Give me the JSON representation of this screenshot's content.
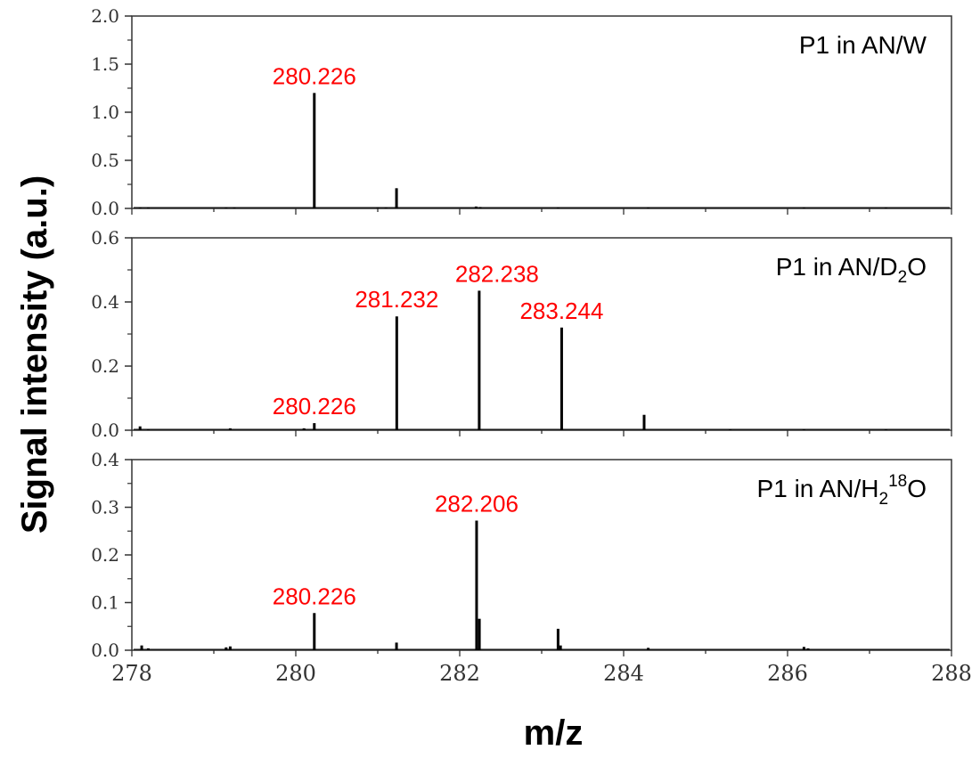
{
  "colors": {
    "annotation": "#ff0000",
    "spectrum": "#000000",
    "axis": "#333333"
  },
  "chart_data": [
    {
      "type": "bar",
      "title_main": "P1 in AN/W",
      "title_sub": "",
      "title_sup": "",
      "title_tail": "",
      "ylim": [
        0,
        2.0
      ],
      "yticks": [
        "0.0",
        "0.5",
        "1.0",
        "1.5",
        "2.0"
      ],
      "ytick_values": [
        0,
        0.5,
        1.0,
        1.5,
        2.0
      ],
      "xlim": [
        278,
        288
      ],
      "peaks": [
        {
          "x": 278.1,
          "y": 0.01
        },
        {
          "x": 278.2,
          "y": 0.012
        },
        {
          "x": 279.15,
          "y": 0.01
        },
        {
          "x": 279.25,
          "y": 0.012
        },
        {
          "x": 280.226,
          "y": 1.2
        },
        {
          "x": 281.0,
          "y": 0.008
        },
        {
          "x": 281.1,
          "y": 0.01
        },
        {
          "x": 281.229,
          "y": 0.21
        },
        {
          "x": 282.2,
          "y": 0.02
        },
        {
          "x": 282.25,
          "y": 0.015
        },
        {
          "x": 283.2,
          "y": 0.008
        },
        {
          "x": 284.3,
          "y": 0.006
        },
        {
          "x": 286.2,
          "y": 0.008
        },
        {
          "x": 287.2,
          "y": 0.006
        }
      ],
      "annotations": [
        {
          "text": "280.226",
          "x": 280.226,
          "y": 1.2
        }
      ]
    },
    {
      "type": "bar",
      "title_main": "P1 in AN/D",
      "title_sub": "2",
      "title_sup": "",
      "title_tail": "O",
      "ylim": [
        0,
        0.6
      ],
      "yticks": [
        "0.0",
        "0.2",
        "0.4",
        "0.6"
      ],
      "ytick_values": [
        0,
        0.2,
        0.4,
        0.6
      ],
      "xlim": [
        278,
        288
      ],
      "peaks": [
        {
          "x": 278.1,
          "y": 0.012
        },
        {
          "x": 278.2,
          "y": 0.004
        },
        {
          "x": 279.2,
          "y": 0.006
        },
        {
          "x": 280.1,
          "y": 0.006
        },
        {
          "x": 280.226,
          "y": 0.022
        },
        {
          "x": 281.232,
          "y": 0.355
        },
        {
          "x": 282.238,
          "y": 0.435
        },
        {
          "x": 283.244,
          "y": 0.32
        },
        {
          "x": 284.25,
          "y": 0.048
        },
        {
          "x": 285.3,
          "y": 0.004
        },
        {
          "x": 286.2,
          "y": 0.004
        },
        {
          "x": 287.2,
          "y": 0.004
        }
      ],
      "annotations": [
        {
          "text": "280.226",
          "x": 280.226,
          "y": 0.022
        },
        {
          "text": "281.232",
          "x": 281.232,
          "y": 0.355
        },
        {
          "text": "282.238",
          "x": 282.238,
          "y": 0.435
        },
        {
          "text": "283.244",
          "x": 283.244,
          "y": 0.32
        }
      ]
    },
    {
      "type": "bar",
      "title_main": "P1  in AN/H",
      "title_sub": "2",
      "title_sup": "18",
      "title_tail": "O",
      "ylim": [
        0,
        0.4
      ],
      "yticks": [
        "0.0",
        "0.1",
        "0.2",
        "0.3",
        "0.4"
      ],
      "ytick_values": [
        0,
        0.1,
        0.2,
        0.3,
        0.4
      ],
      "xlim": [
        278,
        288
      ],
      "xticks": [
        "278",
        "280",
        "282",
        "284",
        "286",
        "288"
      ],
      "xtick_values": [
        278,
        280,
        282,
        284,
        286,
        288
      ],
      "peaks": [
        {
          "x": 278.12,
          "y": 0.01
        },
        {
          "x": 278.2,
          "y": 0.004
        },
        {
          "x": 279.15,
          "y": 0.006
        },
        {
          "x": 279.2,
          "y": 0.008
        },
        {
          "x": 280.226,
          "y": 0.078
        },
        {
          "x": 281.229,
          "y": 0.016
        },
        {
          "x": 282.206,
          "y": 0.272
        },
        {
          "x": 282.24,
          "y": 0.066
        },
        {
          "x": 283.2,
          "y": 0.045
        },
        {
          "x": 283.23,
          "y": 0.01
        },
        {
          "x": 284.3,
          "y": 0.005
        },
        {
          "x": 286.2,
          "y": 0.007
        },
        {
          "x": 286.25,
          "y": 0.004
        }
      ],
      "annotations": [
        {
          "text": "280.226",
          "x": 280.226,
          "y": 0.078
        },
        {
          "text": "282.206",
          "x": 282.206,
          "y": 0.272
        }
      ]
    }
  ],
  "axes": {
    "xlabel": "m/z",
    "ylabel": "Signal intensity (a.u.)"
  }
}
